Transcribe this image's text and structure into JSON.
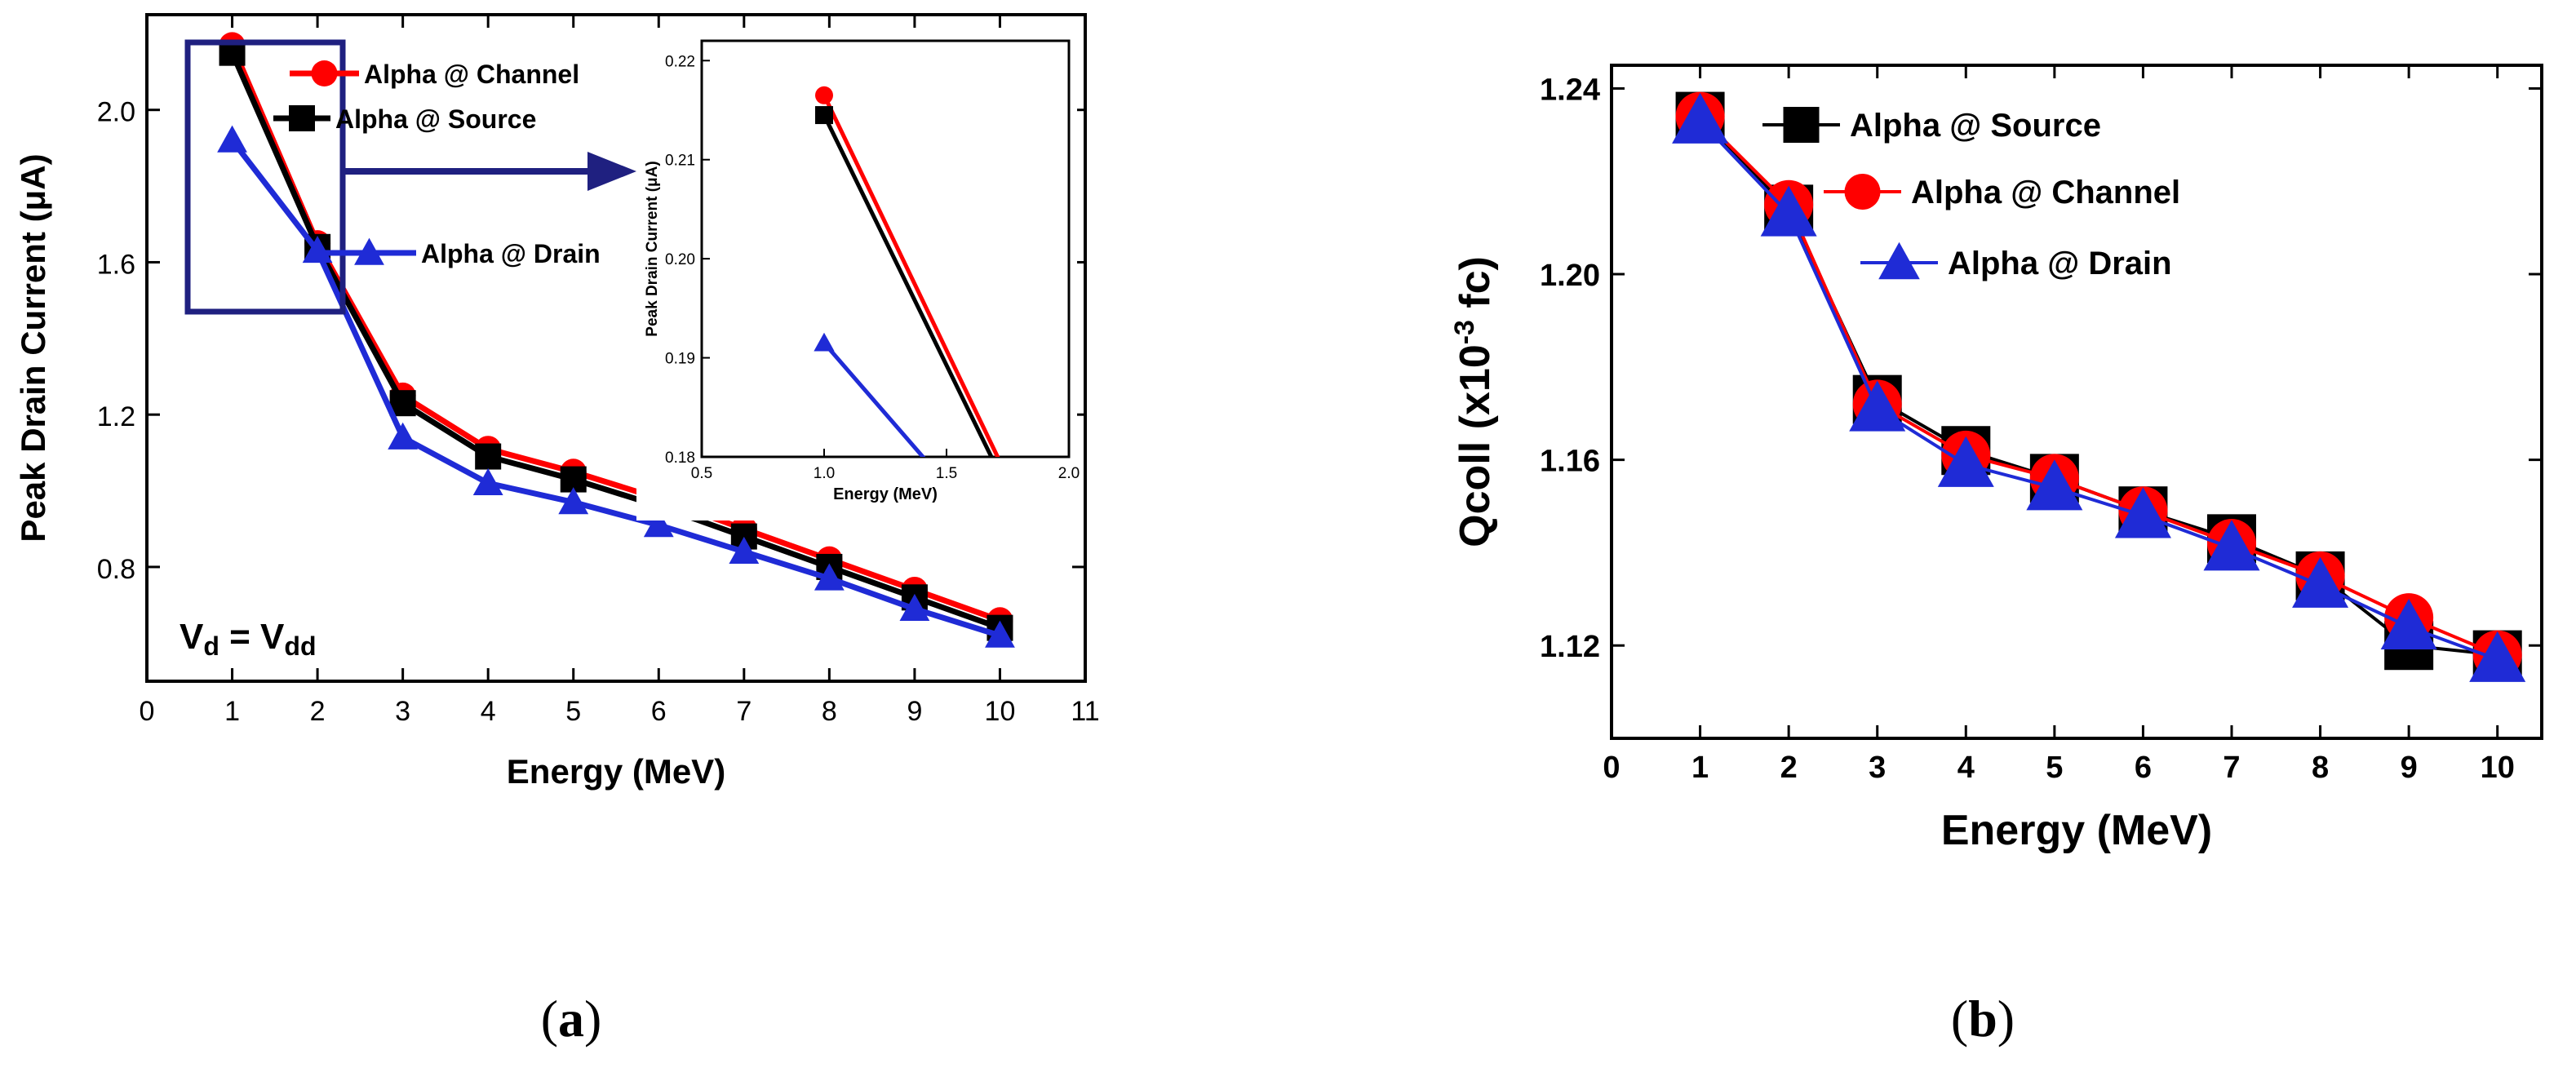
{
  "figure": {
    "captions": [
      {
        "label": "a"
      },
      {
        "label": "b"
      }
    ]
  },
  "chart_data": [
    {
      "type": "line",
      "panel": "a",
      "xlabel": "Energy (MeV)",
      "ylabel": "Peak Drain Current (μA)",
      "xlim": [
        0,
        11
      ],
      "ylim": [
        0.5,
        2.25
      ],
      "xticks": [
        0,
        1,
        2,
        3,
        4,
        5,
        6,
        7,
        8,
        9,
        10,
        11
      ],
      "yticks": [
        0.8,
        1.2,
        1.6,
        2.0
      ],
      "ytick_decimals": 1,
      "x": [
        1,
        2,
        3,
        4,
        5,
        6,
        7,
        8,
        9,
        10
      ],
      "series": [
        {
          "name": "Alpha @ Channel",
          "color": "#ff0000",
          "marker": "circle",
          "values": [
            2.17,
            1.65,
            1.25,
            1.11,
            1.05,
            0.98,
            0.9,
            0.82,
            0.74,
            0.66
          ]
        },
        {
          "name": "Alpha @ Source",
          "color": "#000000",
          "marker": "square",
          "values": [
            2.15,
            1.64,
            1.23,
            1.09,
            1.03,
            0.96,
            0.88,
            0.8,
            0.72,
            0.64
          ]
        },
        {
          "name": "Alpha @ Drain",
          "color": "#1f2bd6",
          "marker": "triangle",
          "values": [
            1.92,
            1.63,
            1.14,
            1.02,
            0.97,
            0.91,
            0.84,
            0.77,
            0.69,
            0.62
          ]
        }
      ],
      "annotation": {
        "text": "V",
        "sub": "d",
        "eq": " = V",
        "sub2": "dd"
      },
      "inset": {
        "xlabel": "Energy (MeV)",
        "ylabel": "Peak Drain Current (μA)",
        "xlim": [
          0.5,
          2.0
        ],
        "ylim": [
          0.18,
          0.222
        ],
        "xticks": [
          0.5,
          1.0,
          1.5,
          2.0
        ],
        "yticks": [
          0.18,
          0.19,
          0.2,
          0.21,
          0.22
        ],
        "series": [
          {
            "name": "Alpha @ Channel",
            "color": "#ff0000",
            "marker": "circle",
            "x": [
              1.0,
              2.0
            ],
            "values": [
              0.2165,
              0.165
            ]
          },
          {
            "name": "Alpha @ Source",
            "color": "#000000",
            "marker": "square",
            "x": [
              1.0,
              2.0
            ],
            "values": [
              0.2145,
              0.164
            ]
          },
          {
            "name": "Alpha @ Drain",
            "color": "#1f2bd6",
            "marker": "triangle",
            "x": [
              1.0,
              2.0
            ],
            "values": [
              0.1915,
              0.163
            ]
          }
        ]
      }
    },
    {
      "type": "line",
      "panel": "b",
      "xlabel": "Energy (MeV)",
      "ylabel": "Qcoll (x10",
      "ylabel_sup": "-3",
      "ylabel_tail": " fc)",
      "xlim": [
        0,
        10.5
      ],
      "ylim": [
        1.1,
        1.245
      ],
      "xticks": [
        0,
        1,
        2,
        3,
        4,
        5,
        6,
        7,
        8,
        9,
        10
      ],
      "yticks": [
        1.12,
        1.16,
        1.2,
        1.24
      ],
      "ytick_decimals": 2,
      "x": [
        1,
        2,
        3,
        4,
        5,
        6,
        7,
        8,
        9,
        10
      ],
      "series": [
        {
          "name": "Alpha @ Source",
          "color": "#000000",
          "marker": "square",
          "values": [
            1.234,
            1.214,
            1.173,
            1.162,
            1.156,
            1.149,
            1.143,
            1.135,
            1.12,
            1.118
          ]
        },
        {
          "name": "Alpha @ Channel",
          "color": "#ff0000",
          "marker": "circle",
          "values": [
            1.234,
            1.215,
            1.172,
            1.161,
            1.156,
            1.149,
            1.142,
            1.135,
            1.126,
            1.118
          ]
        },
        {
          "name": "Alpha @ Drain",
          "color": "#1f2bd6",
          "marker": "triangle",
          "values": [
            1.233,
            1.213,
            1.171,
            1.159,
            1.154,
            1.148,
            1.141,
            1.133,
            1.124,
            1.117
          ]
        }
      ]
    }
  ]
}
